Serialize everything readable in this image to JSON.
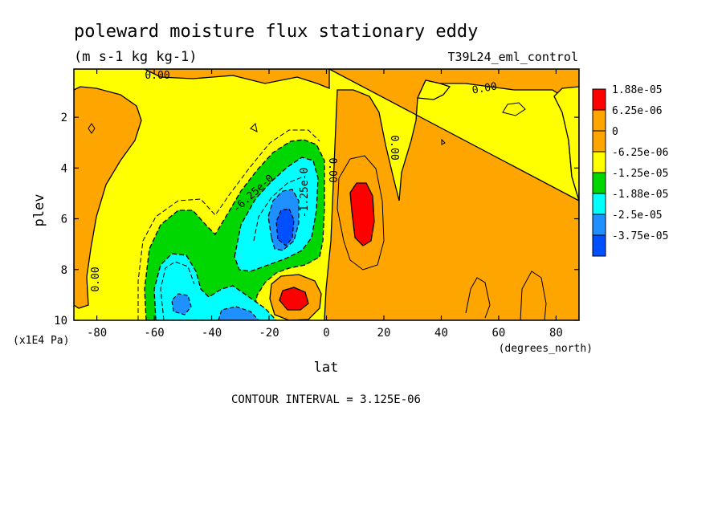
{
  "chart_data": {
    "type": "heatmap",
    "title": "poleward moisture flux stationary eddy",
    "units": "(m s-1 kg kg-1)",
    "run_label": "T39L24_eml_control",
    "xlabel": "lat",
    "x_units": "(degrees_north)",
    "ylabel": "plev",
    "y_units": "(x1E4 Pa)",
    "xlim": [
      -88,
      88
    ],
    "ylim": [
      0.1,
      10
    ],
    "y_inverted": true,
    "x_ticks": [
      "-80",
      "-60",
      "-40",
      "-20",
      "0",
      "20",
      "40",
      "60",
      "80"
    ],
    "y_ticks": [
      "2",
      "4",
      "6",
      "8",
      "10"
    ],
    "contour_interval": "CONTOUR INTERVAL = 3.125E-06",
    "contour_labels": [
      "0.00",
      "0.00",
      "0.00",
      "0.00",
      "0.00",
      "-6.25e-0",
      "-1.25e-0"
    ],
    "legend": {
      "placement": "right",
      "entries": [
        {
          "label": "1.88e-05",
          "color": "#ff0000"
        },
        {
          "label": "6.25e-06",
          "color": "#ffa500"
        },
        {
          "label": "0",
          "color": "#ffa500"
        },
        {
          "label": "-6.25e-06",
          "color": "#ffff00"
        },
        {
          "label": "-1.25e-05",
          "color": "#00d700"
        },
        {
          "label": "-1.88e-05",
          "color": "#00ffff"
        },
        {
          "label": "-2.5e-05",
          "color": "#1e90ff"
        },
        {
          "label": "-3.75e-05",
          "color": "#0050ff"
        }
      ]
    },
    "features": [
      {
        "lat": 12,
        "plev": 5.5,
        "value": 2e-05
      },
      {
        "lat": -12,
        "plev": 9.1,
        "value": 2e-05
      },
      {
        "lat": -15,
        "plev": 6.2,
        "value": -3e-05
      },
      {
        "lat": -53,
        "plev": 9.2,
        "value": -2.6e-05
      },
      {
        "lat": -30,
        "plev": 9.7,
        "value": -2.6e-05
      }
    ]
  }
}
